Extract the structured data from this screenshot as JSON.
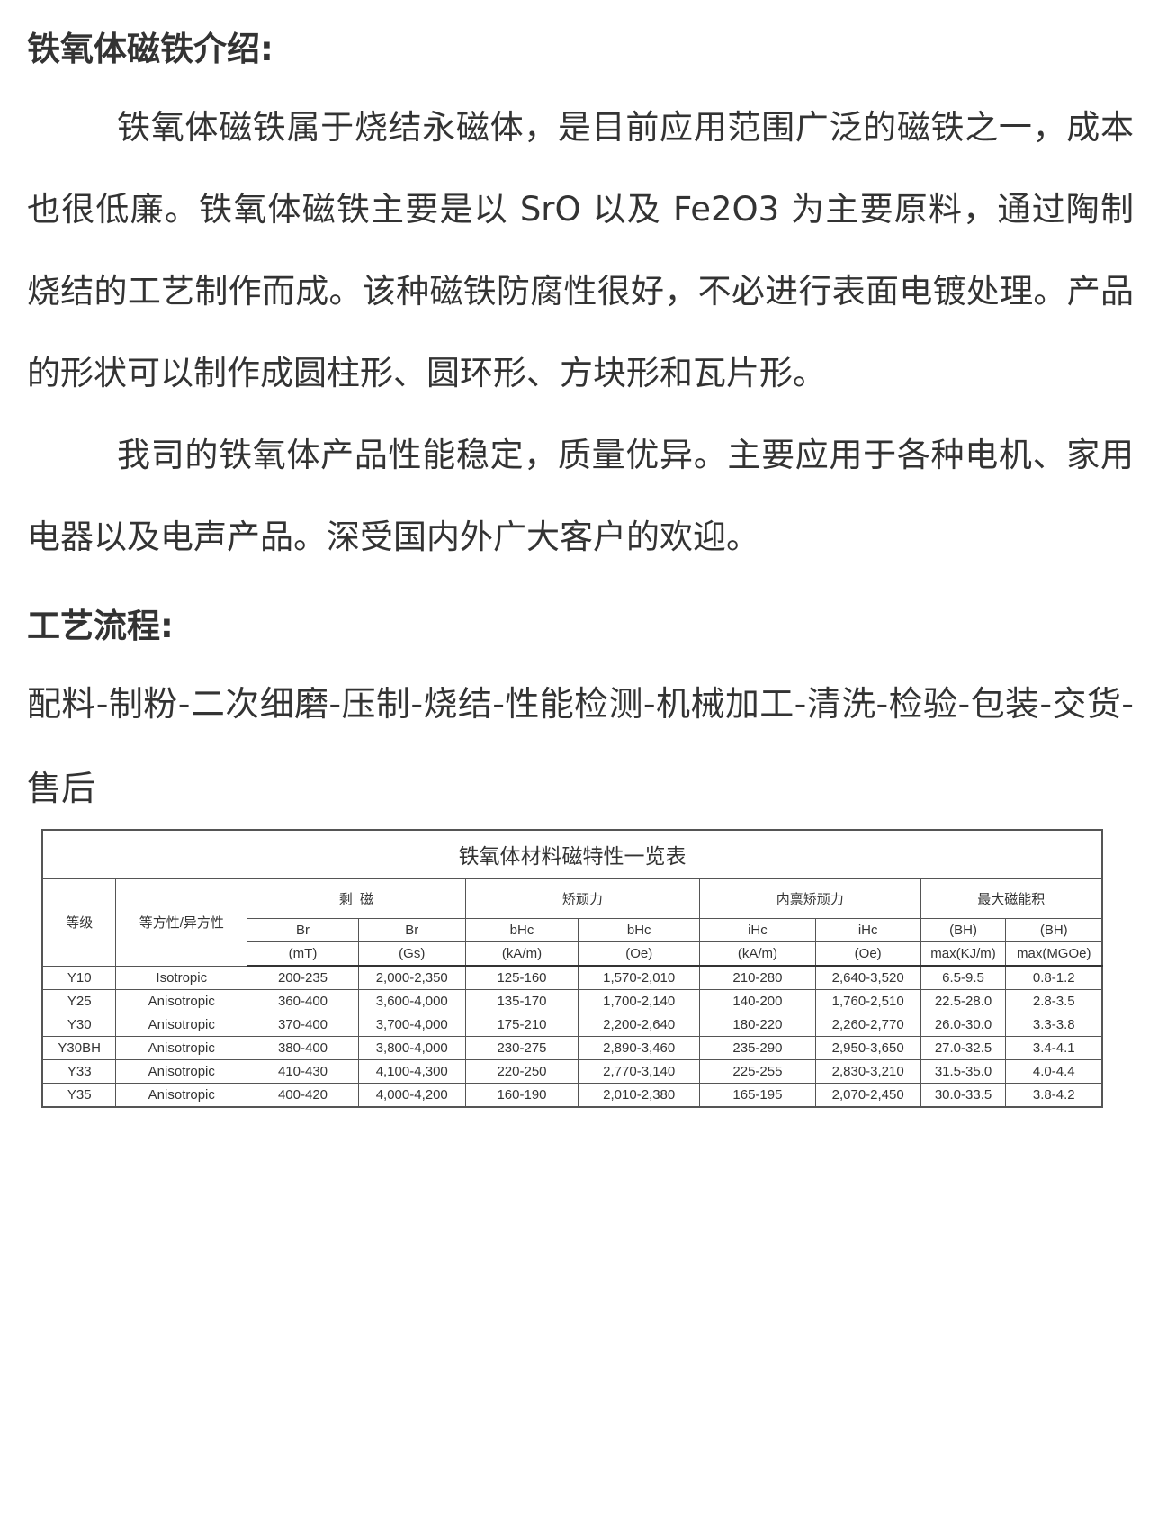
{
  "intro": {
    "heading": "铁氧体磁铁介绍:",
    "paragraph1": "铁氧体磁铁属于烧结永磁体，是目前应用范围广泛的磁铁之一，成本也很低廉。铁氧体磁铁主要是以 SrO 以及 Fe2O3 为主要原料，通过陶制烧结的工艺制作而成。该种磁铁防腐性很好，不必进行表面电镀处理。产品的形状可以制作成圆柱形、圆环形、方块形和瓦片形。",
    "paragraph2": "我司的铁氧体产品性能稳定，质量优异。主要应用于各种电机、家用电器以及电声产品。深受国内外广大客户的欢迎。"
  },
  "process": {
    "heading": "工艺流程:",
    "steps": "配料-制粉-二次细磨-压制-烧结-性能检测-机械加工-清洗-检验-包装-交货-售后"
  },
  "table": {
    "title": "铁氧体材料磁特性一览表",
    "col_grade": "等级",
    "col_isotropy": "等方性/异方性",
    "groups": [
      "剩  磁",
      "矫顽力",
      "内禀矫顽力",
      "最大磁能积"
    ],
    "subheaders": [
      "Br",
      "Br",
      "bHc",
      "bHc",
      "iHc",
      "iHc",
      "(BH)",
      "(BH)"
    ],
    "units": [
      "(mT)",
      "(Gs)",
      "(kA/m)",
      "(Oe)",
      "(kA/m)",
      "(Oe)",
      "max(KJ/m)",
      "max(MGOe)"
    ],
    "rows": [
      [
        "Y10",
        "Isotropic",
        "200-235",
        "2,000-2,350",
        "125-160",
        "1,570-2,010",
        "210-280",
        "2,640-3,520",
        "6.5-9.5",
        "0.8-1.2"
      ],
      [
        "Y25",
        "Anisotropic",
        "360-400",
        "3,600-4,000",
        "135-170",
        "1,700-2,140",
        "140-200",
        "1,760-2,510",
        "22.5-28.0",
        "2.8-3.5"
      ],
      [
        "Y30",
        "Anisotropic",
        "370-400",
        "3,700-4,000",
        "175-210",
        "2,200-2,640",
        "180-220",
        "2,260-2,770",
        "26.0-30.0",
        "3.3-3.8"
      ],
      [
        "Y30BH",
        "Anisotropic",
        "380-400",
        "3,800-4,000",
        "230-275",
        "2,890-3,460",
        "235-290",
        "2,950-3,650",
        "27.0-32.5",
        "3.4-4.1"
      ],
      [
        "Y33",
        "Anisotropic",
        "410-430",
        "4,100-4,300",
        "220-250",
        "2,770-3,140",
        "225-255",
        "2,830-3,210",
        "31.5-35.0",
        "4.0-4.4"
      ],
      [
        "Y35",
        "Anisotropic",
        "400-420",
        "4,000-4,200",
        "160-190",
        "2,010-2,380",
        "165-195",
        "2,070-2,450",
        "30.0-33.5",
        "3.8-4.2"
      ]
    ]
  }
}
